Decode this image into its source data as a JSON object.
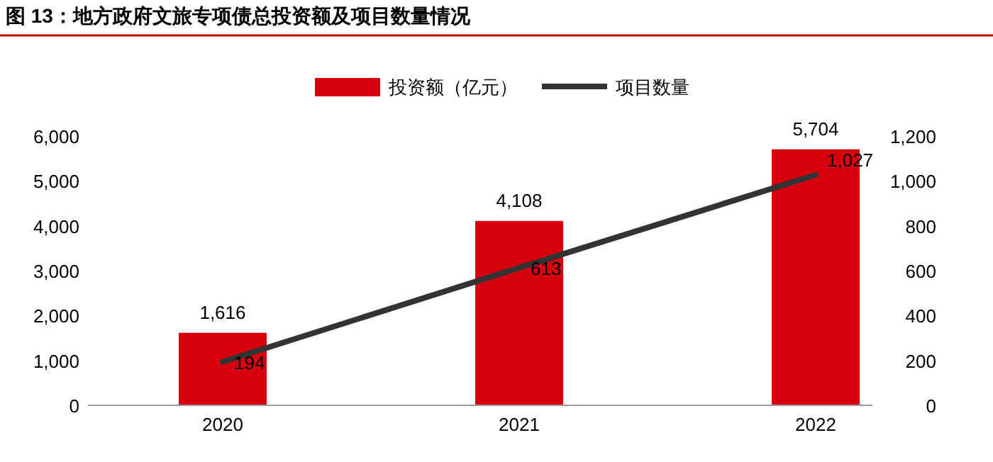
{
  "chart_data": {
    "type": "bar",
    "title": "图 13：地方政府文旅专项债总投资额及项目数量情况",
    "categories": [
      "2020",
      "2021",
      "2022"
    ],
    "series": [
      {
        "name": "投资额（亿元）",
        "color": "#d7000f",
        "values": [
          1616,
          4108,
          5704
        ],
        "value_labels": [
          "1,616",
          "4,108",
          "5,704"
        ]
      },
      {
        "name": "项目数量",
        "type": "line",
        "axis": "y2",
        "color": "#333333",
        "values": [
          194,
          613,
          1027
        ],
        "value_labels": [
          "194",
          "613",
          "1,027"
        ]
      }
    ],
    "ylim": [
      0,
      6000
    ],
    "yticks": [
      0,
      {
        "value": 1000,
        "label": "1,000"
      },
      {
        "value": 2000,
        "label": "2,000"
      },
      {
        "value": 3000,
        "label": "3,000"
      },
      {
        "value": 4000,
        "label": "4,000"
      },
      {
        "value": 5000,
        "label": "5,000"
      },
      {
        "value": 6000,
        "label": "6,000"
      }
    ],
    "y2lim": [
      0,
      1200
    ],
    "y2ticks": [
      0,
      200,
      400,
      600,
      800,
      {
        "value": 1000,
        "label": "1,000"
      },
      {
        "value": 1200,
        "label": "1,200"
      }
    ],
    "legend": "top",
    "grid": false,
    "marker": "none",
    "line_style": "solid"
  }
}
